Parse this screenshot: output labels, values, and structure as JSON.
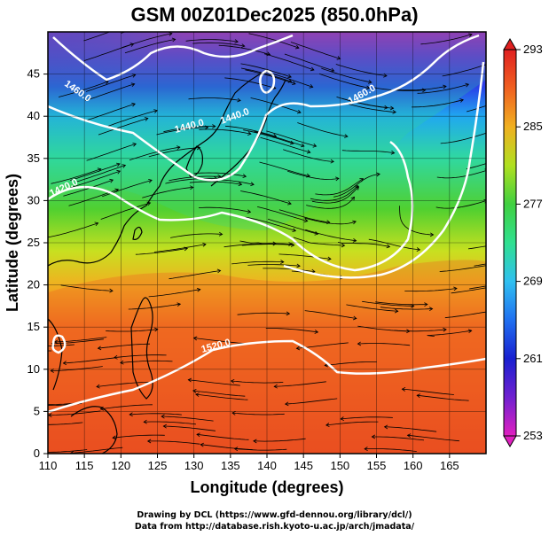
{
  "title": "GSM 00Z01Dec2025 (850.0hPa)",
  "x_axis": {
    "label": "Longitude (degrees)",
    "ticks": [
      "110",
      "115",
      "120",
      "125",
      "130",
      "135",
      "140",
      "145",
      "150",
      "155",
      "160",
      "165"
    ],
    "range": [
      110,
      170
    ]
  },
  "y_axis": {
    "label": "Latitude (degrees)",
    "ticks": [
      "0",
      "5",
      "10",
      "15",
      "20",
      "25",
      "30",
      "35",
      "40",
      "45"
    ],
    "range": [
      0,
      50
    ]
  },
  "colorbar": {
    "ticks": [
      "253",
      "261",
      "269",
      "277",
      "285",
      "293"
    ],
    "range": [
      253,
      293
    ],
    "colors": [
      "#e020c0",
      "#8020d0",
      "#2020d0",
      "#2070f0",
      "#30c0f0",
      "#30e0a0",
      "#40d040",
      "#a0e020",
      "#f0e020",
      "#f0a020",
      "#f06020",
      "#e02020"
    ]
  },
  "contour_labels": [
    "1460.0",
    "1440.0",
    "1440.0",
    "1420.0",
    "1460.0",
    "1520.0"
  ],
  "credits": [
    "Drawing by DCL (https://www.gfd-dennou.org/library/dcl/)",
    "Data from http://database.rish.kyoto-u.ac.jp/arch/jmadata/"
  ]
}
